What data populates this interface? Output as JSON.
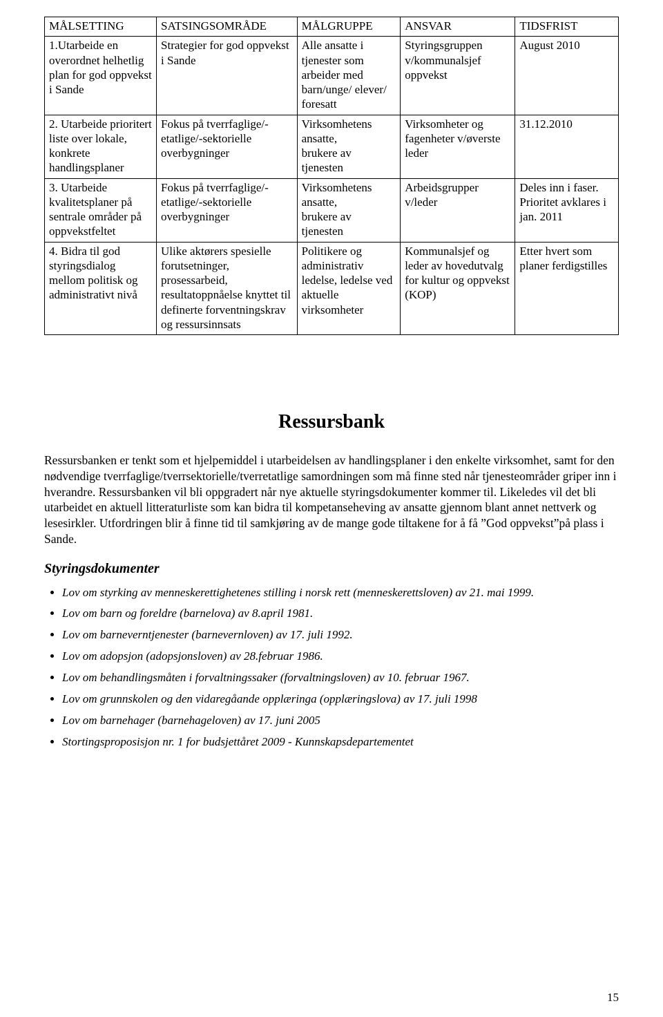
{
  "table": {
    "headers": [
      "MÅLSETTING",
      "SATSINGSOMRÅDE",
      "MÅLGRUPPE",
      "ANSVAR",
      "TIDSFRIST"
    ],
    "col_widths_pct": [
      19.5,
      24.5,
      18,
      20,
      18
    ],
    "border_color": "#000000",
    "font_size_pt": 13,
    "rows": [
      {
        "c1": "1.Utarbeide en overordnet helhetlig plan for  god oppvekst\ni Sande",
        "c2": "Strategier for god oppvekst i Sande",
        "c3": "Alle ansatte i tjenester som arbeider med barn/unge/ elever/ foresatt",
        "c4": "Styringsgruppen v/kommunalsjef oppvekst",
        "c5": "August 2010"
      },
      {
        "c1": "2. Utarbeide prioritert liste over  lokale, konkrete handlingsplaner",
        "c2": "Fokus på tverrfaglige/-etatlige/-sektorielle overbygninger",
        "c3": "Virksomhetens ansatte,\nbrukere av tjenesten",
        "c4": "Virksomheter og fagenheter v/øverste leder",
        "c5": "31.12.2010"
      },
      {
        "c1": "3. Utarbeide kvalitetsplaner på sentrale områder på oppvekstfeltet",
        "c2": "Fokus på tverrfaglige/-etatlige/-sektorielle overbygninger",
        "c3": "Virksomhetens ansatte,\nbrukere av tjenesten",
        "c4": "Arbeidsgrupper v/leder",
        "c5": "Deles inn i faser. Prioritet avklares i jan. 2011"
      },
      {
        "c1": "4. Bidra til god styringsdialog mellom politisk og administrativt nivå",
        "c2": "Ulike aktørers spesielle forutsetninger, prosessarbeid, resultatoppnåelse knyttet til definerte forventningskrav og ressursinnsats",
        "c3": "Politikere og administrativ ledelse, ledelse ved aktuelle virksomheter",
        "c4": "Kommunalsjef og leder av hovedutvalg for kultur og oppvekst (KOP)",
        "c5": "Etter hvert som planer ferdigstilles"
      }
    ]
  },
  "section_title": "Ressursbank",
  "paragraph": "Ressursbanken er tenkt som et hjelpemiddel i utarbeidelsen av handlingsplaner i den enkelte virksomhet, samt for den nødvendige tverrfaglige/tverrsektorielle/tverretatlige samordningen som må finne sted når tjenesteområder griper inn i hverandre. Ressursbanken vil bli oppgradert når nye aktuelle styringsdokumenter kommer til. Likeledes vil det bli utarbeidet en aktuell litteraturliste som kan bidra til kompetanseheving av ansatte gjennom blant annet nettverk og lesesirkler. Utfordringen blir å finne tid til samkjøring av de mange gode tiltakene for å få ”God oppvekst”på plass i Sande.",
  "subheading": "Styringsdokumenter",
  "laws": [
    "Lov om styrking av menneskerettighetenes stilling i norsk rett (menneskerettsloven) av 21. mai 1999.",
    "Lov om barn og foreldre (barnelova) av 8.april 1981.",
    "Lov om barneverntjenester (barnevernloven) av 17. juli 1992.",
    "Lov om adopsjon (adopsjonsloven) av 28.februar 1986.",
    "Lov om behandlingsmåten i forvaltningssaker (forvaltningsloven) av 10. februar 1967.",
    "Lov om grunnskolen og den vidaregåande opplæringa (opplæringslova) av 17. juli 1998",
    "Lov om barnehager (barnehageloven) av 17. juni 2005",
    "Stortingsproposisjon nr. 1 for budsjettåret 2009 - Kunnskapsdepartementet"
  ],
  "page_number": "15",
  "colors": {
    "background": "#ffffff",
    "text": "#000000",
    "border": "#000000"
  },
  "typography": {
    "body_font": "Times New Roman",
    "body_size_pt": 13,
    "section_title_size_pt": 21,
    "subhead_size_pt": 15
  }
}
